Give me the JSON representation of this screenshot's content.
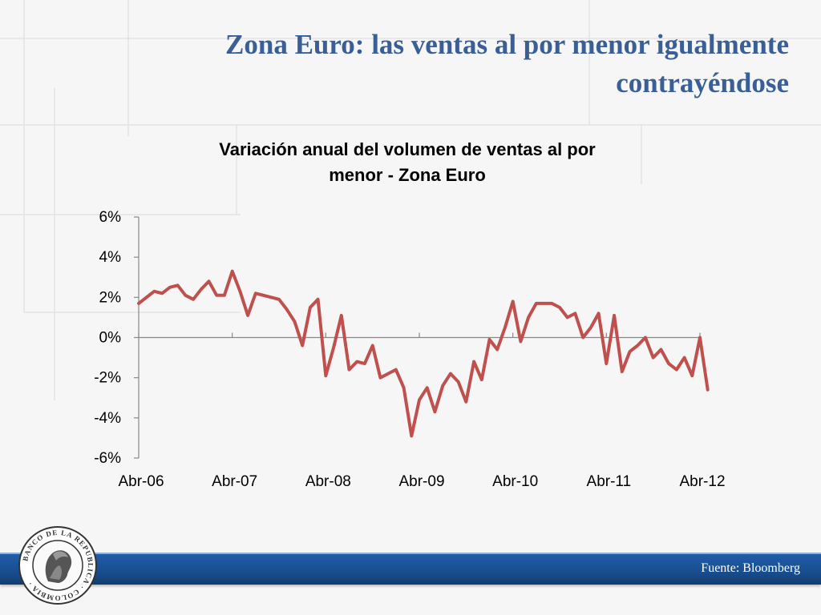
{
  "slide": {
    "title_line1": "Zona Euro:  las ventas al por menor igualmente",
    "title_line2": "contrayéndose",
    "source": "Fuente: Bloomberg",
    "seal_text": "BANCO DE LA REPUBLICA · COLOMBIA"
  },
  "colors": {
    "title": "#3a5f96",
    "series": "#c0504d",
    "footer_bar": "#1a4f90"
  },
  "chart_data": {
    "type": "line",
    "title_line1": "Variación anual del volumen de ventas al por",
    "title_line2": "menor - Zona Euro",
    "xlabel": "",
    "ylabel": "",
    "ylim": [
      -6,
      6
    ],
    "yticks": [
      "6%",
      "4%",
      "2%",
      "0%",
      "-2%",
      "-4%",
      "-6%"
    ],
    "ytick_values": [
      6,
      4,
      2,
      0,
      -2,
      -4,
      -6
    ],
    "xticks": [
      "Abr-06",
      "Abr-07",
      "Abr-08",
      "Abr-09",
      "Abr-10",
      "Abr-11",
      "Abr-12"
    ],
    "xtick_positions": [
      0,
      12,
      24,
      36,
      48,
      60,
      72
    ],
    "grid": false,
    "legend": "none",
    "series": [
      {
        "name": "",
        "values": [
          1.7,
          2.0,
          2.3,
          2.2,
          2.5,
          2.6,
          2.1,
          1.9,
          2.4,
          2.8,
          2.1,
          2.1,
          3.3,
          2.3,
          1.1,
          2.2,
          2.1,
          2.0,
          1.9,
          1.4,
          0.8,
          -0.4,
          1.5,
          1.9,
          -1.9,
          -0.5,
          1.1,
          -1.6,
          -1.2,
          -1.3,
          -0.4,
          -2.0,
          -1.8,
          -1.6,
          -2.5,
          -4.9,
          -3.1,
          -2.5,
          -3.7,
          -2.4,
          -1.8,
          -2.2,
          -3.2,
          -1.2,
          -2.1,
          -0.1,
          -0.6,
          0.5,
          1.8,
          -0.2,
          1.0,
          1.7,
          1.7,
          1.7,
          1.5,
          1.0,
          1.2,
          0.0,
          0.5,
          1.2,
          -1.3,
          1.1,
          -1.7,
          -0.7,
          -0.4,
          0.0,
          -1.0,
          -0.6,
          -1.3,
          -1.6,
          -1.0,
          -1.9,
          0.0,
          -2.6
        ]
      }
    ]
  }
}
